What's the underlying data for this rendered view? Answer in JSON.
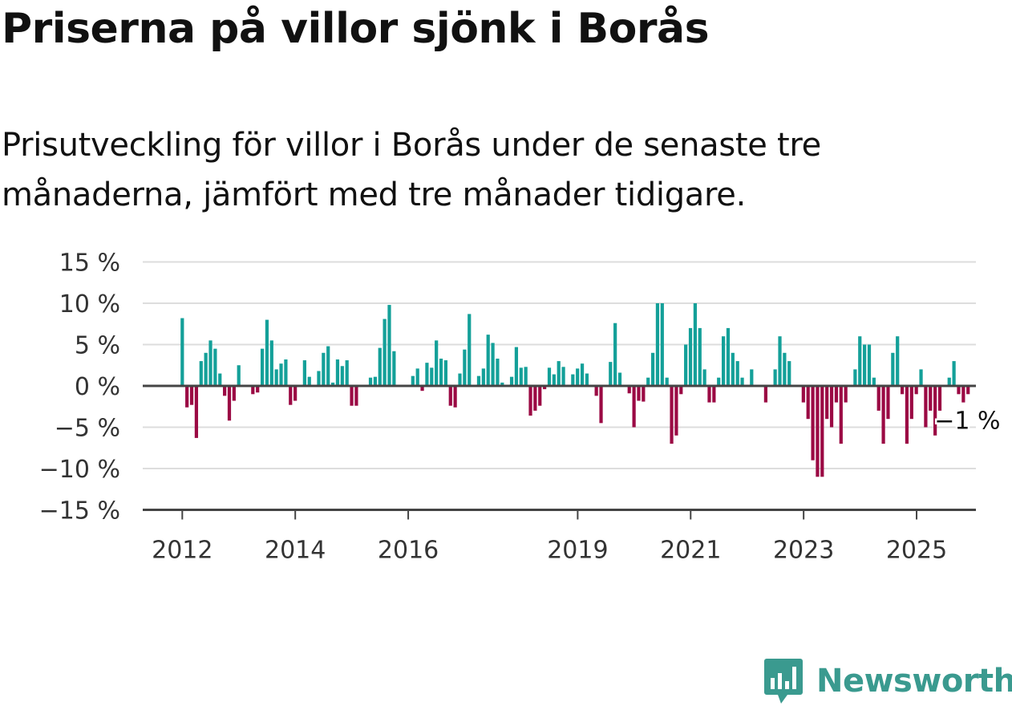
{
  "title": "Priserna på villor sjönk i Borås",
  "subtitle": "Prisutveckling för villor i Borås under de senaste tre månaderna, jämfört med tre månader tidigare.",
  "brand": {
    "name": "Newsworthy",
    "icon": "newsworthy-logo-icon",
    "color": "#3a9a8f"
  },
  "colors": {
    "positive": "#14a099",
    "negative": "#9b0a44",
    "grid": "#dddddd",
    "axis": "#444444"
  },
  "chart_data": {
    "type": "bar",
    "ylim": [
      -15,
      15
    ],
    "yticks": [
      15,
      10,
      5,
      0,
      -5,
      -10,
      -15
    ],
    "ytick_labels": [
      "15 %",
      "10 %",
      "5 %",
      "0 %",
      "−5 %",
      "−10 %",
      "−15 %"
    ],
    "xticks": [
      {
        "label": "2012",
        "x": 2012.0
      },
      {
        "label": "2014",
        "x": 2014.0
      },
      {
        "label": "2016",
        "x": 2016.0
      },
      {
        "label": "2019",
        "x": 2019.0
      },
      {
        "label": "2021",
        "x": 2021.0
      },
      {
        "label": "2023",
        "x": 2023.0
      },
      {
        "label": "2025",
        "x": 2025.0
      }
    ],
    "xlim": [
      2011.3,
      2026.05
    ],
    "start": 2012.0,
    "step": 0.0833,
    "grid": true,
    "annotation": "−1 %",
    "values": [
      8.2,
      -2.6,
      -2.3,
      -6.3,
      3,
      4,
      5.5,
      4.5,
      1.5,
      -1.2,
      -4.2,
      -1.8,
      2.5,
      0,
      0,
      -1,
      -0.8,
      4.5,
      8,
      5.5,
      2,
      2.7,
      3.2,
      -2.3,
      -1.8,
      0,
      3.1,
      1.1,
      0,
      1.8,
      4,
      4.8,
      0.4,
      3.2,
      2.4,
      3.1,
      -2.4,
      -2.4,
      0,
      0,
      1,
      1.1,
      4.6,
      8.1,
      9.8,
      4.2,
      0,
      0,
      0,
      1.2,
      2.1,
      -0.6,
      2.8,
      2.2,
      5.5,
      3.3,
      3.1,
      -2.4,
      -2.6,
      1.5,
      4.4,
      8.7,
      0,
      1.2,
      2.1,
      6.2,
      5.2,
      3.3,
      0.4,
      0,
      1.1,
      4.7,
      2.2,
      2.3,
      -3.6,
      -3,
      -2.4,
      -0.4,
      2.2,
      1.4,
      3,
      2.3,
      0,
      1.4,
      2.1,
      2.7,
      1.5,
      0,
      -1.2,
      -4.5,
      0,
      2.9,
      7.6,
      1.6,
      0,
      -0.9,
      -5,
      -1.8,
      -1.9,
      1,
      4,
      10,
      10,
      1,
      -7,
      -6,
      -1,
      5,
      7,
      10,
      7,
      2,
      -2,
      -2,
      1,
      6,
      7,
      4,
      3,
      1,
      0,
      2,
      0,
      0,
      -2,
      0,
      2,
      6,
      4,
      3,
      0,
      0,
      -2,
      -4,
      -9,
      -11,
      -11,
      -4,
      -5,
      -2,
      -7,
      -2,
      0,
      2,
      6,
      5,
      5,
      1,
      -3,
      -7,
      -4,
      4,
      6,
      -1,
      -7,
      -4,
      -1,
      2,
      -5,
      -3,
      -6,
      -3,
      0,
      1,
      3,
      -1,
      -2,
      -1
    ]
  }
}
